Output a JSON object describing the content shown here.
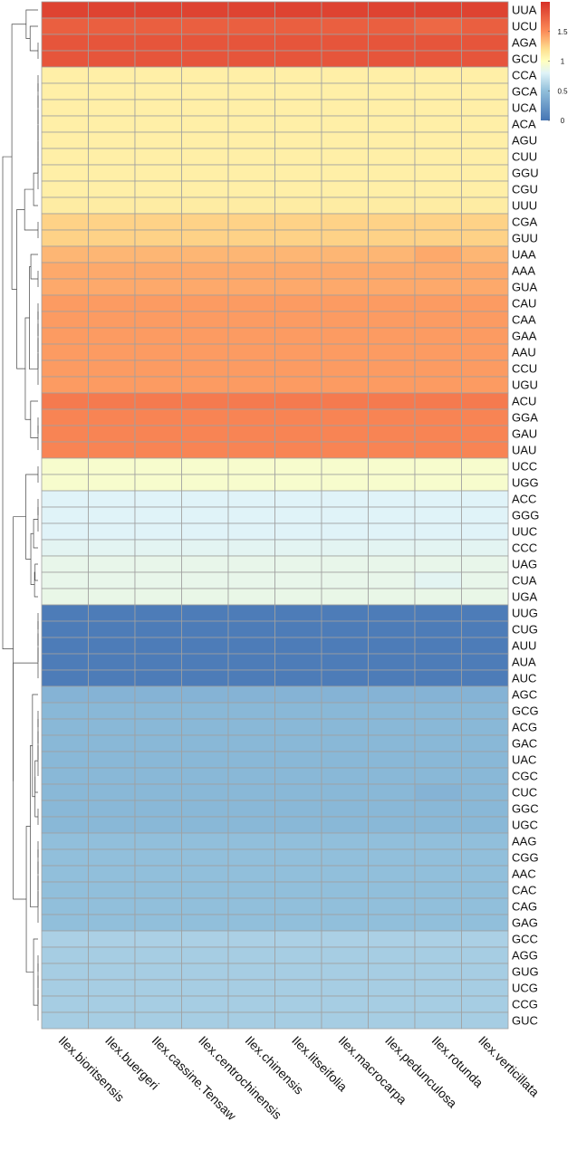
{
  "chart_data": {
    "type": "heatmap",
    "title": "",
    "columns": [
      "Ilex.bioritsensis",
      "Ilex.buergeri",
      "Ilex.cassine.Tensaw",
      "Ilex.centrochinensis",
      "Ilex.chinensis",
      "Ilex.litseifolia",
      "Ilex.macrocarpa",
      "Ilex.pedunculosa",
      "Ilex.rotunda",
      "Ilex.verticillata"
    ],
    "rows": [
      {
        "codon": "UUA",
        "values": [
          1.9,
          1.9,
          1.9,
          1.9,
          1.9,
          1.9,
          1.9,
          1.9,
          1.9,
          1.9
        ]
      },
      {
        "codon": "UCU",
        "values": [
          1.75,
          1.75,
          1.75,
          1.75,
          1.75,
          1.75,
          1.75,
          1.75,
          1.7,
          1.75
        ]
      },
      {
        "codon": "AGA",
        "values": [
          1.8,
          1.8,
          1.8,
          1.8,
          1.8,
          1.8,
          1.8,
          1.8,
          1.8,
          1.8
        ]
      },
      {
        "codon": "GCU",
        "values": [
          1.8,
          1.8,
          1.8,
          1.8,
          1.8,
          1.8,
          1.8,
          1.8,
          1.8,
          1.8
        ]
      },
      {
        "codon": "CCA",
        "values": [
          1.1,
          1.1,
          1.1,
          1.1,
          1.1,
          1.1,
          1.1,
          1.1,
          1.1,
          1.1
        ]
      },
      {
        "codon": "GCA",
        "values": [
          1.1,
          1.1,
          1.1,
          1.1,
          1.1,
          1.1,
          1.1,
          1.1,
          1.1,
          1.1
        ]
      },
      {
        "codon": "UCA",
        "values": [
          1.1,
          1.1,
          1.1,
          1.1,
          1.1,
          1.1,
          1.1,
          1.1,
          1.1,
          1.1
        ]
      },
      {
        "codon": "ACA",
        "values": [
          1.1,
          1.1,
          1.1,
          1.1,
          1.1,
          1.1,
          1.1,
          1.1,
          1.1,
          1.1
        ]
      },
      {
        "codon": "AGU",
        "values": [
          1.1,
          1.1,
          1.1,
          1.1,
          1.1,
          1.1,
          1.1,
          1.1,
          1.1,
          1.1
        ]
      },
      {
        "codon": "CUU",
        "values": [
          1.1,
          1.1,
          1.1,
          1.1,
          1.1,
          1.1,
          1.1,
          1.1,
          1.1,
          1.1
        ]
      },
      {
        "codon": "GGU",
        "values": [
          1.1,
          1.1,
          1.1,
          1.1,
          1.1,
          1.1,
          1.1,
          1.1,
          1.1,
          1.1
        ]
      },
      {
        "codon": "CGU",
        "values": [
          1.1,
          1.1,
          1.1,
          1.1,
          1.1,
          1.1,
          1.1,
          1.1,
          1.1,
          1.1
        ]
      },
      {
        "codon": "UUU",
        "values": [
          1.12,
          1.12,
          1.12,
          1.12,
          1.12,
          1.12,
          1.12,
          1.12,
          1.12,
          1.12
        ]
      },
      {
        "codon": "CGA",
        "values": [
          1.25,
          1.25,
          1.25,
          1.25,
          1.25,
          1.25,
          1.25,
          1.25,
          1.25,
          1.25
        ]
      },
      {
        "codon": "GUU",
        "values": [
          1.25,
          1.25,
          1.25,
          1.25,
          1.25,
          1.25,
          1.25,
          1.25,
          1.25,
          1.25
        ]
      },
      {
        "codon": "UAA",
        "values": [
          1.35,
          1.35,
          1.35,
          1.35,
          1.35,
          1.35,
          1.35,
          1.35,
          1.4,
          1.35
        ]
      },
      {
        "codon": "AAA",
        "values": [
          1.4,
          1.4,
          1.4,
          1.4,
          1.4,
          1.4,
          1.4,
          1.4,
          1.4,
          1.4
        ]
      },
      {
        "codon": "GUA",
        "values": [
          1.4,
          1.4,
          1.4,
          1.4,
          1.4,
          1.4,
          1.4,
          1.4,
          1.4,
          1.4
        ]
      },
      {
        "codon": "CAU",
        "values": [
          1.45,
          1.45,
          1.45,
          1.45,
          1.45,
          1.45,
          1.45,
          1.45,
          1.45,
          1.45
        ]
      },
      {
        "codon": "CAA",
        "values": [
          1.45,
          1.45,
          1.45,
          1.45,
          1.45,
          1.45,
          1.45,
          1.45,
          1.45,
          1.45
        ]
      },
      {
        "codon": "GAA",
        "values": [
          1.45,
          1.45,
          1.45,
          1.45,
          1.45,
          1.45,
          1.45,
          1.45,
          1.45,
          1.45
        ]
      },
      {
        "codon": "AAU",
        "values": [
          1.45,
          1.45,
          1.45,
          1.45,
          1.45,
          1.45,
          1.45,
          1.45,
          1.45,
          1.45
        ]
      },
      {
        "codon": "CCU",
        "values": [
          1.45,
          1.45,
          1.45,
          1.45,
          1.45,
          1.45,
          1.45,
          1.45,
          1.45,
          1.45
        ]
      },
      {
        "codon": "UGU",
        "values": [
          1.45,
          1.45,
          1.45,
          1.45,
          1.45,
          1.45,
          1.45,
          1.45,
          1.45,
          1.45
        ]
      },
      {
        "codon": "ACU",
        "values": [
          1.6,
          1.6,
          1.6,
          1.6,
          1.6,
          1.6,
          1.6,
          1.6,
          1.6,
          1.6
        ]
      },
      {
        "codon": "GGA",
        "values": [
          1.55,
          1.55,
          1.55,
          1.55,
          1.55,
          1.55,
          1.55,
          1.55,
          1.55,
          1.55
        ]
      },
      {
        "codon": "GAU",
        "values": [
          1.55,
          1.55,
          1.55,
          1.55,
          1.55,
          1.55,
          1.55,
          1.55,
          1.55,
          1.55
        ]
      },
      {
        "codon": "UAU",
        "values": [
          1.55,
          1.55,
          1.55,
          1.55,
          1.55,
          1.55,
          1.55,
          1.55,
          1.55,
          1.55
        ]
      },
      {
        "codon": "UCC",
        "values": [
          0.95,
          0.95,
          0.95,
          0.95,
          0.95,
          0.95,
          0.95,
          0.95,
          0.95,
          0.95
        ]
      },
      {
        "codon": "UGG",
        "values": [
          0.95,
          0.95,
          0.95,
          0.95,
          0.95,
          0.95,
          0.95,
          0.95,
          0.95,
          0.95
        ]
      },
      {
        "codon": "ACC",
        "values": [
          0.8,
          0.8,
          0.8,
          0.8,
          0.8,
          0.8,
          0.8,
          0.8,
          0.8,
          0.8
        ]
      },
      {
        "codon": "GGG",
        "values": [
          0.8,
          0.8,
          0.8,
          0.8,
          0.8,
          0.8,
          0.8,
          0.8,
          0.8,
          0.8
        ]
      },
      {
        "codon": "UUC",
        "values": [
          0.8,
          0.8,
          0.8,
          0.8,
          0.8,
          0.8,
          0.8,
          0.8,
          0.8,
          0.8
        ]
      },
      {
        "codon": "CCC",
        "values": [
          0.82,
          0.82,
          0.82,
          0.82,
          0.82,
          0.82,
          0.82,
          0.82,
          0.82,
          0.82
        ]
      },
      {
        "codon": "UAG",
        "values": [
          0.85,
          0.85,
          0.85,
          0.85,
          0.85,
          0.85,
          0.85,
          0.85,
          0.85,
          0.85
        ]
      },
      {
        "codon": "CUA",
        "values": [
          0.85,
          0.85,
          0.85,
          0.85,
          0.85,
          0.85,
          0.85,
          0.85,
          0.82,
          0.85
        ]
      },
      {
        "codon": "UGA",
        "values": [
          0.86,
          0.86,
          0.86,
          0.86,
          0.86,
          0.86,
          0.86,
          0.86,
          0.86,
          0.86
        ]
      },
      {
        "codon": "UUG",
        "values": [
          0.05,
          0.05,
          0.05,
          0.05,
          0.05,
          0.05,
          0.05,
          0.05,
          0.05,
          0.05
        ]
      },
      {
        "codon": "CUG",
        "values": [
          0.05,
          0.05,
          0.05,
          0.05,
          0.05,
          0.05,
          0.05,
          0.05,
          0.05,
          0.05
        ]
      },
      {
        "codon": "AUU",
        "values": [
          0.05,
          0.05,
          0.05,
          0.05,
          0.05,
          0.05,
          0.05,
          0.05,
          0.05,
          0.05
        ]
      },
      {
        "codon": "AUA",
        "values": [
          0.05,
          0.05,
          0.05,
          0.05,
          0.05,
          0.05,
          0.05,
          0.05,
          0.05,
          0.05
        ]
      },
      {
        "codon": "AUC",
        "values": [
          0.05,
          0.05,
          0.05,
          0.05,
          0.05,
          0.05,
          0.05,
          0.05,
          0.05,
          0.05
        ]
      },
      {
        "codon": "AGC",
        "values": [
          0.42,
          0.42,
          0.42,
          0.42,
          0.42,
          0.42,
          0.42,
          0.42,
          0.42,
          0.42
        ]
      },
      {
        "codon": "GCG",
        "values": [
          0.45,
          0.45,
          0.45,
          0.45,
          0.45,
          0.45,
          0.45,
          0.45,
          0.45,
          0.45
        ]
      },
      {
        "codon": "ACG",
        "values": [
          0.45,
          0.45,
          0.45,
          0.45,
          0.45,
          0.45,
          0.45,
          0.45,
          0.45,
          0.45
        ]
      },
      {
        "codon": "GAC",
        "values": [
          0.45,
          0.45,
          0.45,
          0.45,
          0.45,
          0.45,
          0.45,
          0.45,
          0.45,
          0.45
        ]
      },
      {
        "codon": "UAC",
        "values": [
          0.45,
          0.45,
          0.45,
          0.45,
          0.45,
          0.45,
          0.45,
          0.45,
          0.45,
          0.45
        ]
      },
      {
        "codon": "CGC",
        "values": [
          0.45,
          0.45,
          0.45,
          0.45,
          0.45,
          0.45,
          0.45,
          0.45,
          0.45,
          0.45
        ]
      },
      {
        "codon": "CUC",
        "values": [
          0.45,
          0.45,
          0.45,
          0.45,
          0.45,
          0.45,
          0.45,
          0.45,
          0.42,
          0.45
        ]
      },
      {
        "codon": "GGC",
        "values": [
          0.45,
          0.45,
          0.45,
          0.45,
          0.45,
          0.45,
          0.45,
          0.45,
          0.45,
          0.45
        ]
      },
      {
        "codon": "UGC",
        "values": [
          0.45,
          0.45,
          0.45,
          0.45,
          0.45,
          0.45,
          0.45,
          0.45,
          0.45,
          0.45
        ]
      },
      {
        "codon": "AAG",
        "values": [
          0.5,
          0.5,
          0.5,
          0.5,
          0.5,
          0.5,
          0.5,
          0.5,
          0.5,
          0.5
        ]
      },
      {
        "codon": "CGG",
        "values": [
          0.5,
          0.5,
          0.5,
          0.5,
          0.5,
          0.5,
          0.5,
          0.5,
          0.5,
          0.5
        ]
      },
      {
        "codon": "AAC",
        "values": [
          0.5,
          0.5,
          0.5,
          0.5,
          0.5,
          0.5,
          0.5,
          0.5,
          0.5,
          0.5
        ]
      },
      {
        "codon": "CAC",
        "values": [
          0.5,
          0.5,
          0.5,
          0.5,
          0.5,
          0.5,
          0.5,
          0.5,
          0.5,
          0.5
        ]
      },
      {
        "codon": "CAG",
        "values": [
          0.5,
          0.5,
          0.5,
          0.5,
          0.5,
          0.5,
          0.5,
          0.5,
          0.5,
          0.5
        ]
      },
      {
        "codon": "GAG",
        "values": [
          0.5,
          0.5,
          0.5,
          0.5,
          0.5,
          0.5,
          0.5,
          0.5,
          0.5,
          0.5
        ]
      },
      {
        "codon": "GCC",
        "values": [
          0.6,
          0.6,
          0.6,
          0.6,
          0.6,
          0.6,
          0.6,
          0.6,
          0.6,
          0.6
        ]
      },
      {
        "codon": "AGG",
        "values": [
          0.58,
          0.58,
          0.58,
          0.58,
          0.58,
          0.58,
          0.58,
          0.58,
          0.58,
          0.58
        ]
      },
      {
        "codon": "GUG",
        "values": [
          0.58,
          0.58,
          0.58,
          0.58,
          0.58,
          0.58,
          0.58,
          0.58,
          0.58,
          0.58
        ]
      },
      {
        "codon": "UCG",
        "values": [
          0.58,
          0.58,
          0.58,
          0.58,
          0.58,
          0.58,
          0.58,
          0.58,
          0.58,
          0.58
        ]
      },
      {
        "codon": "CCG",
        "values": [
          0.58,
          0.58,
          0.58,
          0.58,
          0.58,
          0.58,
          0.58,
          0.58,
          0.58,
          0.58
        ]
      },
      {
        "codon": "GUC",
        "values": [
          0.58,
          0.58,
          0.58,
          0.58,
          0.58,
          0.58,
          0.58,
          0.58,
          0.58,
          0.58
        ]
      }
    ],
    "color_scale": {
      "min": 0,
      "max": 2,
      "ticks": [
        {
          "value": 0,
          "label": "0"
        },
        {
          "value": 0.5,
          "label": "0.5"
        },
        {
          "value": 1,
          "label": "1"
        },
        {
          "value": 1.5,
          "label": "1.5"
        }
      ],
      "stops": [
        {
          "value": 0.0,
          "color": "#4575b4"
        },
        {
          "value": 0.5,
          "color": "#91bfdb"
        },
        {
          "value": 0.8,
          "color": "#e0f3f8"
        },
        {
          "value": 1.0,
          "color": "#ffffbf"
        },
        {
          "value": 1.2,
          "color": "#fee090"
        },
        {
          "value": 1.5,
          "color": "#fc8d59"
        },
        {
          "value": 2.0,
          "color": "#d73027"
        }
      ]
    },
    "grid_color": "#a0a0a0",
    "dendrogram": "row",
    "legend_position": "top-right"
  }
}
